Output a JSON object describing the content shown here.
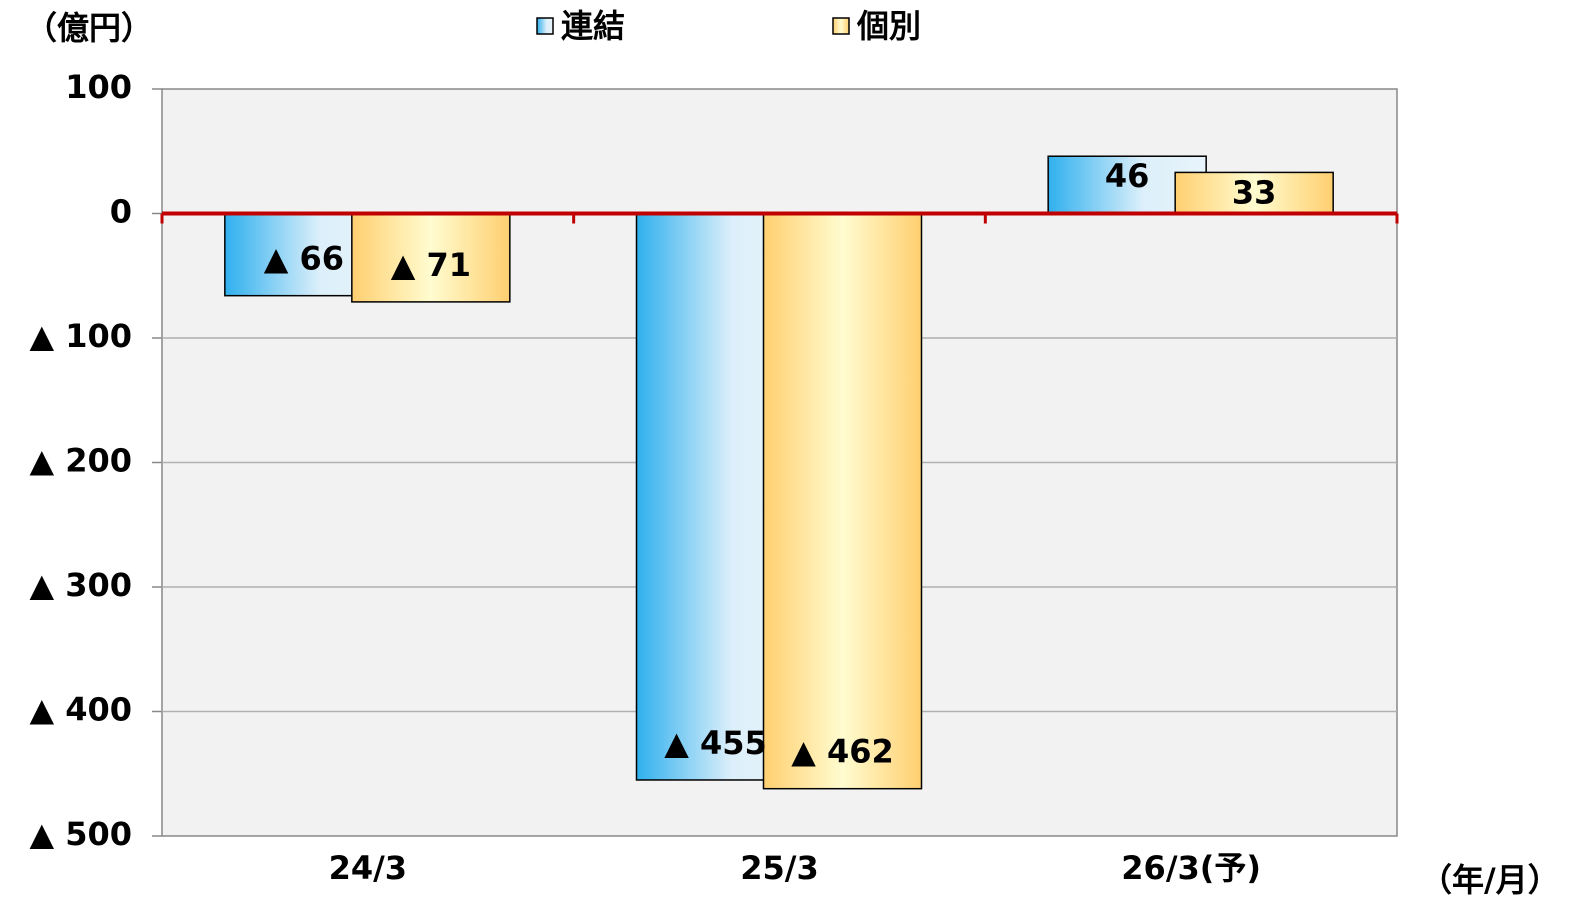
{
  "chart_data": {
    "type": "bar",
    "y_label": "（億円）",
    "x_label": "（年/月）",
    "categories": [
      "24/3",
      "25/3",
      "26/3(予)"
    ],
    "series": [
      {
        "name": "連結",
        "color": "#2fb0ee",
        "values": [
          -66,
          -455,
          46
        ],
        "value_labels": [
          "▲ 66",
          "▲ 455",
          "46"
        ]
      },
      {
        "name": "個別",
        "color": "#ffcf70",
        "values": [
          -71,
          -462,
          33
        ],
        "value_labels": [
          "▲ 71",
          "▲ 462",
          "33"
        ]
      }
    ],
    "ylim": [
      -500,
      100
    ],
    "yticks": [
      {
        "value": -500,
        "label": "▲ 500"
      },
      {
        "value": -400,
        "label": "▲ 400"
      },
      {
        "value": -300,
        "label": "▲ 300"
      },
      {
        "value": -200,
        "label": "▲ 200"
      },
      {
        "value": -100,
        "label": "▲ 100"
      },
      0,
      100
    ],
    "grid": true,
    "zero_line_color": "#c00000"
  }
}
